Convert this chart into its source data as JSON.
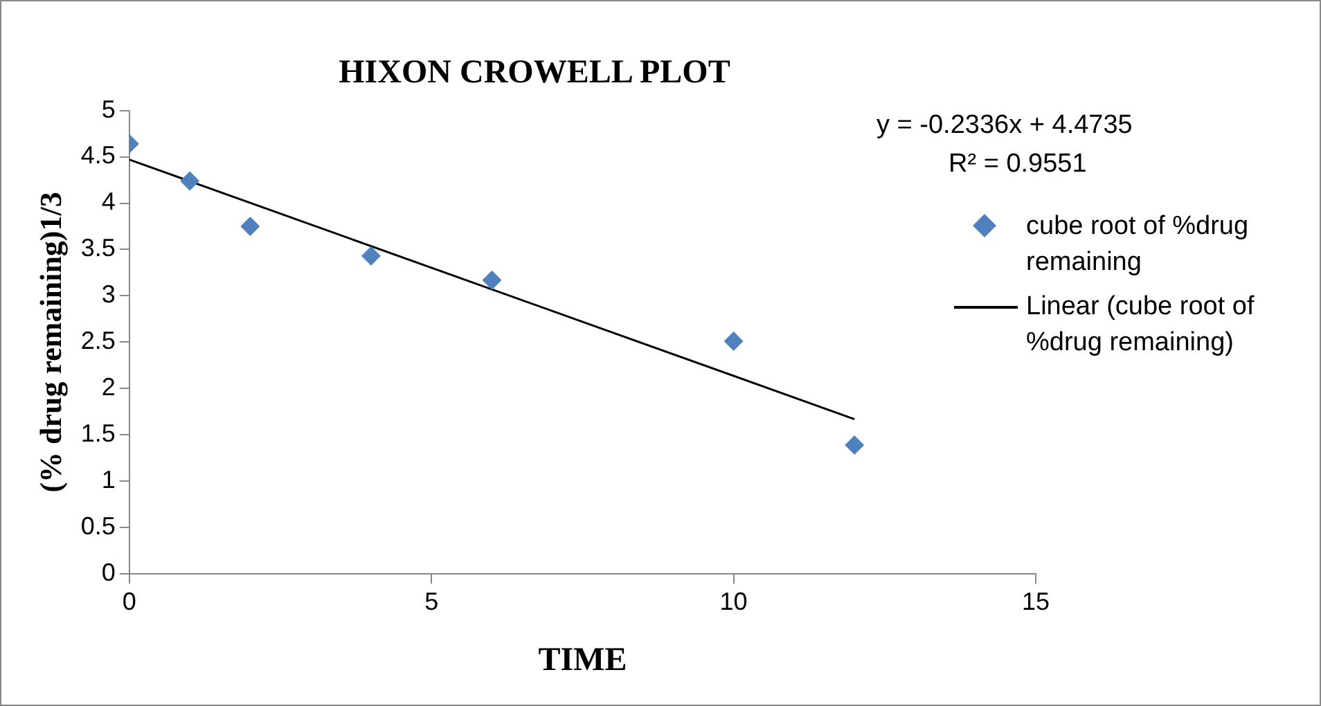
{
  "chart_data": {
    "type": "scatter",
    "title": "HIXON CROWELL PLOT",
    "xlabel": "TIME",
    "ylabel": "(% drug remaining)1/3",
    "xlim": [
      0,
      15
    ],
    "xticks": [
      0,
      5,
      10,
      15
    ],
    "ylim": [
      0,
      5
    ],
    "yticks": [
      0,
      0.5,
      1,
      1.5,
      2,
      2.5,
      3,
      3.5,
      4,
      4.5,
      5
    ],
    "grid": false,
    "legend": "right",
    "annotations": [
      "y = -0.2336x + 4.4735",
      "R² = 0.9551"
    ],
    "series": [
      {
        "name": "cube root of %drug remaining",
        "marker": "diamond",
        "color": "#4f81bd",
        "x": [
          0,
          1,
          2,
          4,
          6,
          10,
          12
        ],
        "values": [
          4.64,
          4.24,
          3.75,
          3.43,
          3.17,
          2.51,
          1.39
        ]
      },
      {
        "name": "Linear (cube root of %drug remaining)",
        "type": "line",
        "marker": "none",
        "color": "#000000",
        "x": [
          0,
          12
        ],
        "values": [
          4.47,
          1.67
        ]
      }
    ]
  }
}
